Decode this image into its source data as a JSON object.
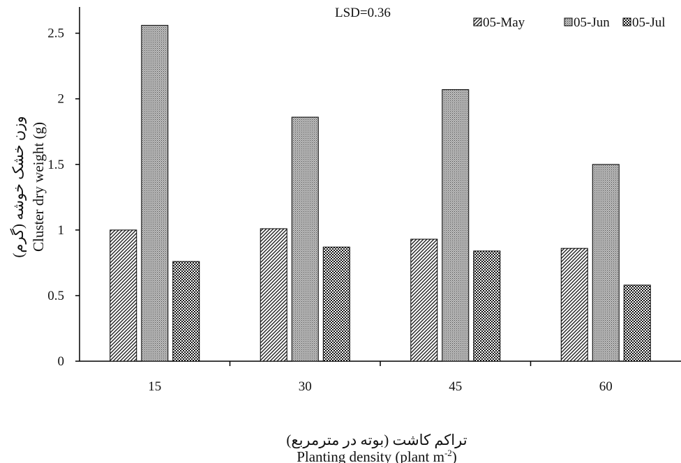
{
  "chart_data": {
    "type": "bar",
    "title": "",
    "annotation": "LSD=0.36",
    "categories": [
      "15",
      "30",
      "45",
      "60"
    ],
    "series": [
      {
        "name": "05-May",
        "values": [
          1.0,
          1.01,
          0.93,
          0.86
        ],
        "pattern": "diagonal-hatch"
      },
      {
        "name": "05-Jun",
        "values": [
          2.56,
          1.86,
          2.07,
          1.5
        ],
        "pattern": "dense-dots"
      },
      {
        "name": "05-Jul",
        "values": [
          0.76,
          0.87,
          0.84,
          0.58
        ],
        "pattern": "checker"
      }
    ],
    "xlabel_fa": "تراکم کاشت (بوته در مترمربع)",
    "xlabel": "Planting density (plant m",
    "xlabel_sup": "-2",
    "xlabel_close": ")",
    "ylabel_fa": "وزن خشک خوشه (گرم)",
    "ylabel": "Cluster dry weight (g)",
    "ylim": [
      0,
      2.7
    ],
    "yticks": [
      0,
      0.5,
      1,
      1.5,
      2,
      2.5
    ],
    "ytick_labels": [
      "0",
      "0.5",
      "1",
      "1.5",
      "2",
      "2.5"
    ],
    "grid": false,
    "legend_position": "top-right"
  }
}
